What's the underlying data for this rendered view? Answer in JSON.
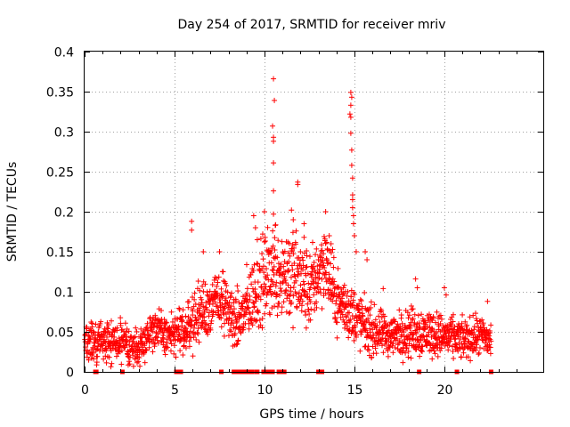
{
  "chart_data": {
    "type": "scatter",
    "title": "Day 254 of 2017, SRMTID for receiver mriv",
    "xlabel": "GPS time / hours",
    "ylabel": "SRMTID / TECUs",
    "xlim": [
      0,
      25.5
    ],
    "ylim": [
      0,
      0.4
    ],
    "xticks": [
      0,
      5,
      10,
      15,
      20
    ],
    "xtick_labels": [
      "0",
      "5",
      "10",
      "15",
      "20"
    ],
    "yticks": [
      0,
      0.05,
      0.1,
      0.15,
      0.2,
      0.25,
      0.3,
      0.35,
      0.4
    ],
    "ytick_labels": [
      "0",
      "0.05",
      "0.1",
      "0.15",
      "0.2",
      "0.25",
      "0.3",
      "0.35",
      "0.4"
    ],
    "grid": true,
    "marker": "+",
    "color": "#ff0000",
    "series": [
      {
        "name": "SRMTID",
        "envelope": [
          {
            "t": 0.0,
            "base": 0.035,
            "spread": 0.02
          },
          {
            "t": 1.0,
            "base": 0.04,
            "spread": 0.02
          },
          {
            "t": 2.0,
            "base": 0.035,
            "spread": 0.02
          },
          {
            "t": 3.0,
            "base": 0.03,
            "spread": 0.02
          },
          {
            "t": 3.8,
            "base": 0.055,
            "spread": 0.02
          },
          {
            "t": 4.6,
            "base": 0.045,
            "spread": 0.02
          },
          {
            "t": 5.5,
            "base": 0.05,
            "spread": 0.025
          },
          {
            "t": 6.5,
            "base": 0.075,
            "spread": 0.03
          },
          {
            "t": 7.5,
            "base": 0.09,
            "spread": 0.03
          },
          {
            "t": 8.5,
            "base": 0.06,
            "spread": 0.03
          },
          {
            "t": 9.5,
            "base": 0.1,
            "spread": 0.04
          },
          {
            "t": 10.5,
            "base": 0.13,
            "spread": 0.05
          },
          {
            "t": 11.5,
            "base": 0.12,
            "spread": 0.05
          },
          {
            "t": 12.5,
            "base": 0.1,
            "spread": 0.04
          },
          {
            "t": 13.3,
            "base": 0.14,
            "spread": 0.04
          },
          {
            "t": 14.0,
            "base": 0.09,
            "spread": 0.03
          },
          {
            "t": 15.0,
            "base": 0.07,
            "spread": 0.03
          },
          {
            "t": 16.0,
            "base": 0.05,
            "spread": 0.025
          },
          {
            "t": 17.0,
            "base": 0.045,
            "spread": 0.02
          },
          {
            "t": 18.0,
            "base": 0.05,
            "spread": 0.025
          },
          {
            "t": 19.0,
            "base": 0.05,
            "spread": 0.025
          },
          {
            "t": 20.0,
            "base": 0.045,
            "spread": 0.02
          },
          {
            "t": 21.0,
            "base": 0.04,
            "spread": 0.02
          },
          {
            "t": 22.0,
            "base": 0.045,
            "spread": 0.02
          },
          {
            "t": 22.6,
            "base": 0.04,
            "spread": 0.02
          }
        ],
        "outliers": [
          [
            5.95,
            0.188
          ],
          [
            5.95,
            0.177
          ],
          [
            6.6,
            0.15
          ],
          [
            7.5,
            0.15
          ],
          [
            7.7,
            0.125
          ],
          [
            9.4,
            0.195
          ],
          [
            9.5,
            0.18
          ],
          [
            9.6,
            0.165
          ],
          [
            10.0,
            0.2
          ],
          [
            10.5,
            0.366
          ],
          [
            10.55,
            0.339
          ],
          [
            10.45,
            0.307
          ],
          [
            10.5,
            0.293
          ],
          [
            10.5,
            0.288
          ],
          [
            10.5,
            0.261
          ],
          [
            10.5,
            0.226
          ],
          [
            10.5,
            0.197
          ],
          [
            10.6,
            0.183
          ],
          [
            10.3,
            0.15
          ],
          [
            11.5,
            0.202
          ],
          [
            11.6,
            0.19
          ],
          [
            11.85,
            0.237
          ],
          [
            11.85,
            0.234
          ],
          [
            12.2,
            0.185
          ],
          [
            12.2,
            0.168
          ],
          [
            13.4,
            0.2
          ],
          [
            13.6,
            0.17
          ],
          [
            13.7,
            0.16
          ],
          [
            14.8,
            0.349
          ],
          [
            14.85,
            0.343
          ],
          [
            14.8,
            0.333
          ],
          [
            14.75,
            0.322
          ],
          [
            14.8,
            0.318
          ],
          [
            14.8,
            0.298
          ],
          [
            14.85,
            0.277
          ],
          [
            14.85,
            0.258
          ],
          [
            14.9,
            0.242
          ],
          [
            14.9,
            0.221
          ],
          [
            14.9,
            0.215
          ],
          [
            14.9,
            0.205
          ],
          [
            14.95,
            0.195
          ],
          [
            14.95,
            0.185
          ],
          [
            15.0,
            0.17
          ],
          [
            15.1,
            0.15
          ],
          [
            15.6,
            0.15
          ],
          [
            15.7,
            0.14
          ],
          [
            16.6,
            0.104
          ],
          [
            18.4,
            0.116
          ],
          [
            18.5,
            0.105
          ],
          [
            20.0,
            0.105
          ],
          [
            20.1,
            0.096
          ],
          [
            22.4,
            0.088
          ],
          [
            12.0,
            0.15
          ],
          [
            11.3,
            0.162
          ],
          [
            13.0,
            0.14
          ]
        ]
      }
    ],
    "gaps": [
      0.6,
      0.65,
      2.1,
      5.1,
      5.2,
      5.35,
      7.6,
      8.3,
      8.4,
      8.5,
      8.6,
      8.7,
      8.8,
      8.9,
      9.0,
      9.1,
      9.2,
      9.3,
      9.55,
      9.6,
      9.95,
      10.15,
      10.3,
      10.45,
      10.8,
      10.9,
      11.0,
      11.1,
      13.0,
      13.1,
      13.2,
      18.6,
      20.7,
      22.6
    ]
  }
}
